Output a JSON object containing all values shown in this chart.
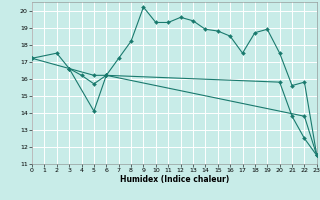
{
  "xlabel": "Humidex (Indice chaleur)",
  "xlim": [
    0,
    23
  ],
  "ylim": [
    11,
    20.5
  ],
  "yticks": [
    11,
    12,
    13,
    14,
    15,
    16,
    17,
    18,
    19,
    20
  ],
  "xticks": [
    0,
    1,
    2,
    3,
    4,
    5,
    6,
    7,
    8,
    9,
    10,
    11,
    12,
    13,
    14,
    15,
    16,
    17,
    18,
    19,
    20,
    21,
    22,
    23
  ],
  "bg_color": "#c8ece8",
  "line_color": "#1a7a6e",
  "grid_color": "#ffffff",
  "lines": [
    {
      "x": [
        0,
        2,
        3,
        4,
        5,
        6,
        7,
        8,
        9,
        10,
        11,
        12,
        13,
        14,
        15,
        16,
        17,
        18,
        19,
        20,
        21,
        22,
        23
      ],
      "y": [
        17.2,
        17.5,
        16.6,
        16.2,
        15.7,
        16.2,
        17.2,
        18.2,
        20.2,
        19.3,
        19.3,
        19.6,
        19.4,
        18.9,
        18.8,
        18.5,
        17.5,
        18.7,
        18.9,
        17.5,
        15.6,
        15.8,
        11.5
      ]
    },
    {
      "x": [
        0,
        3,
        5,
        6,
        22,
        23
      ],
      "y": [
        17.2,
        16.6,
        16.2,
        16.2,
        13.8,
        11.5
      ]
    },
    {
      "x": [
        3,
        5,
        6,
        20,
        21,
        22,
        23
      ],
      "y": [
        16.6,
        14.1,
        16.2,
        15.8,
        13.8,
        12.5,
        11.5
      ]
    }
  ]
}
